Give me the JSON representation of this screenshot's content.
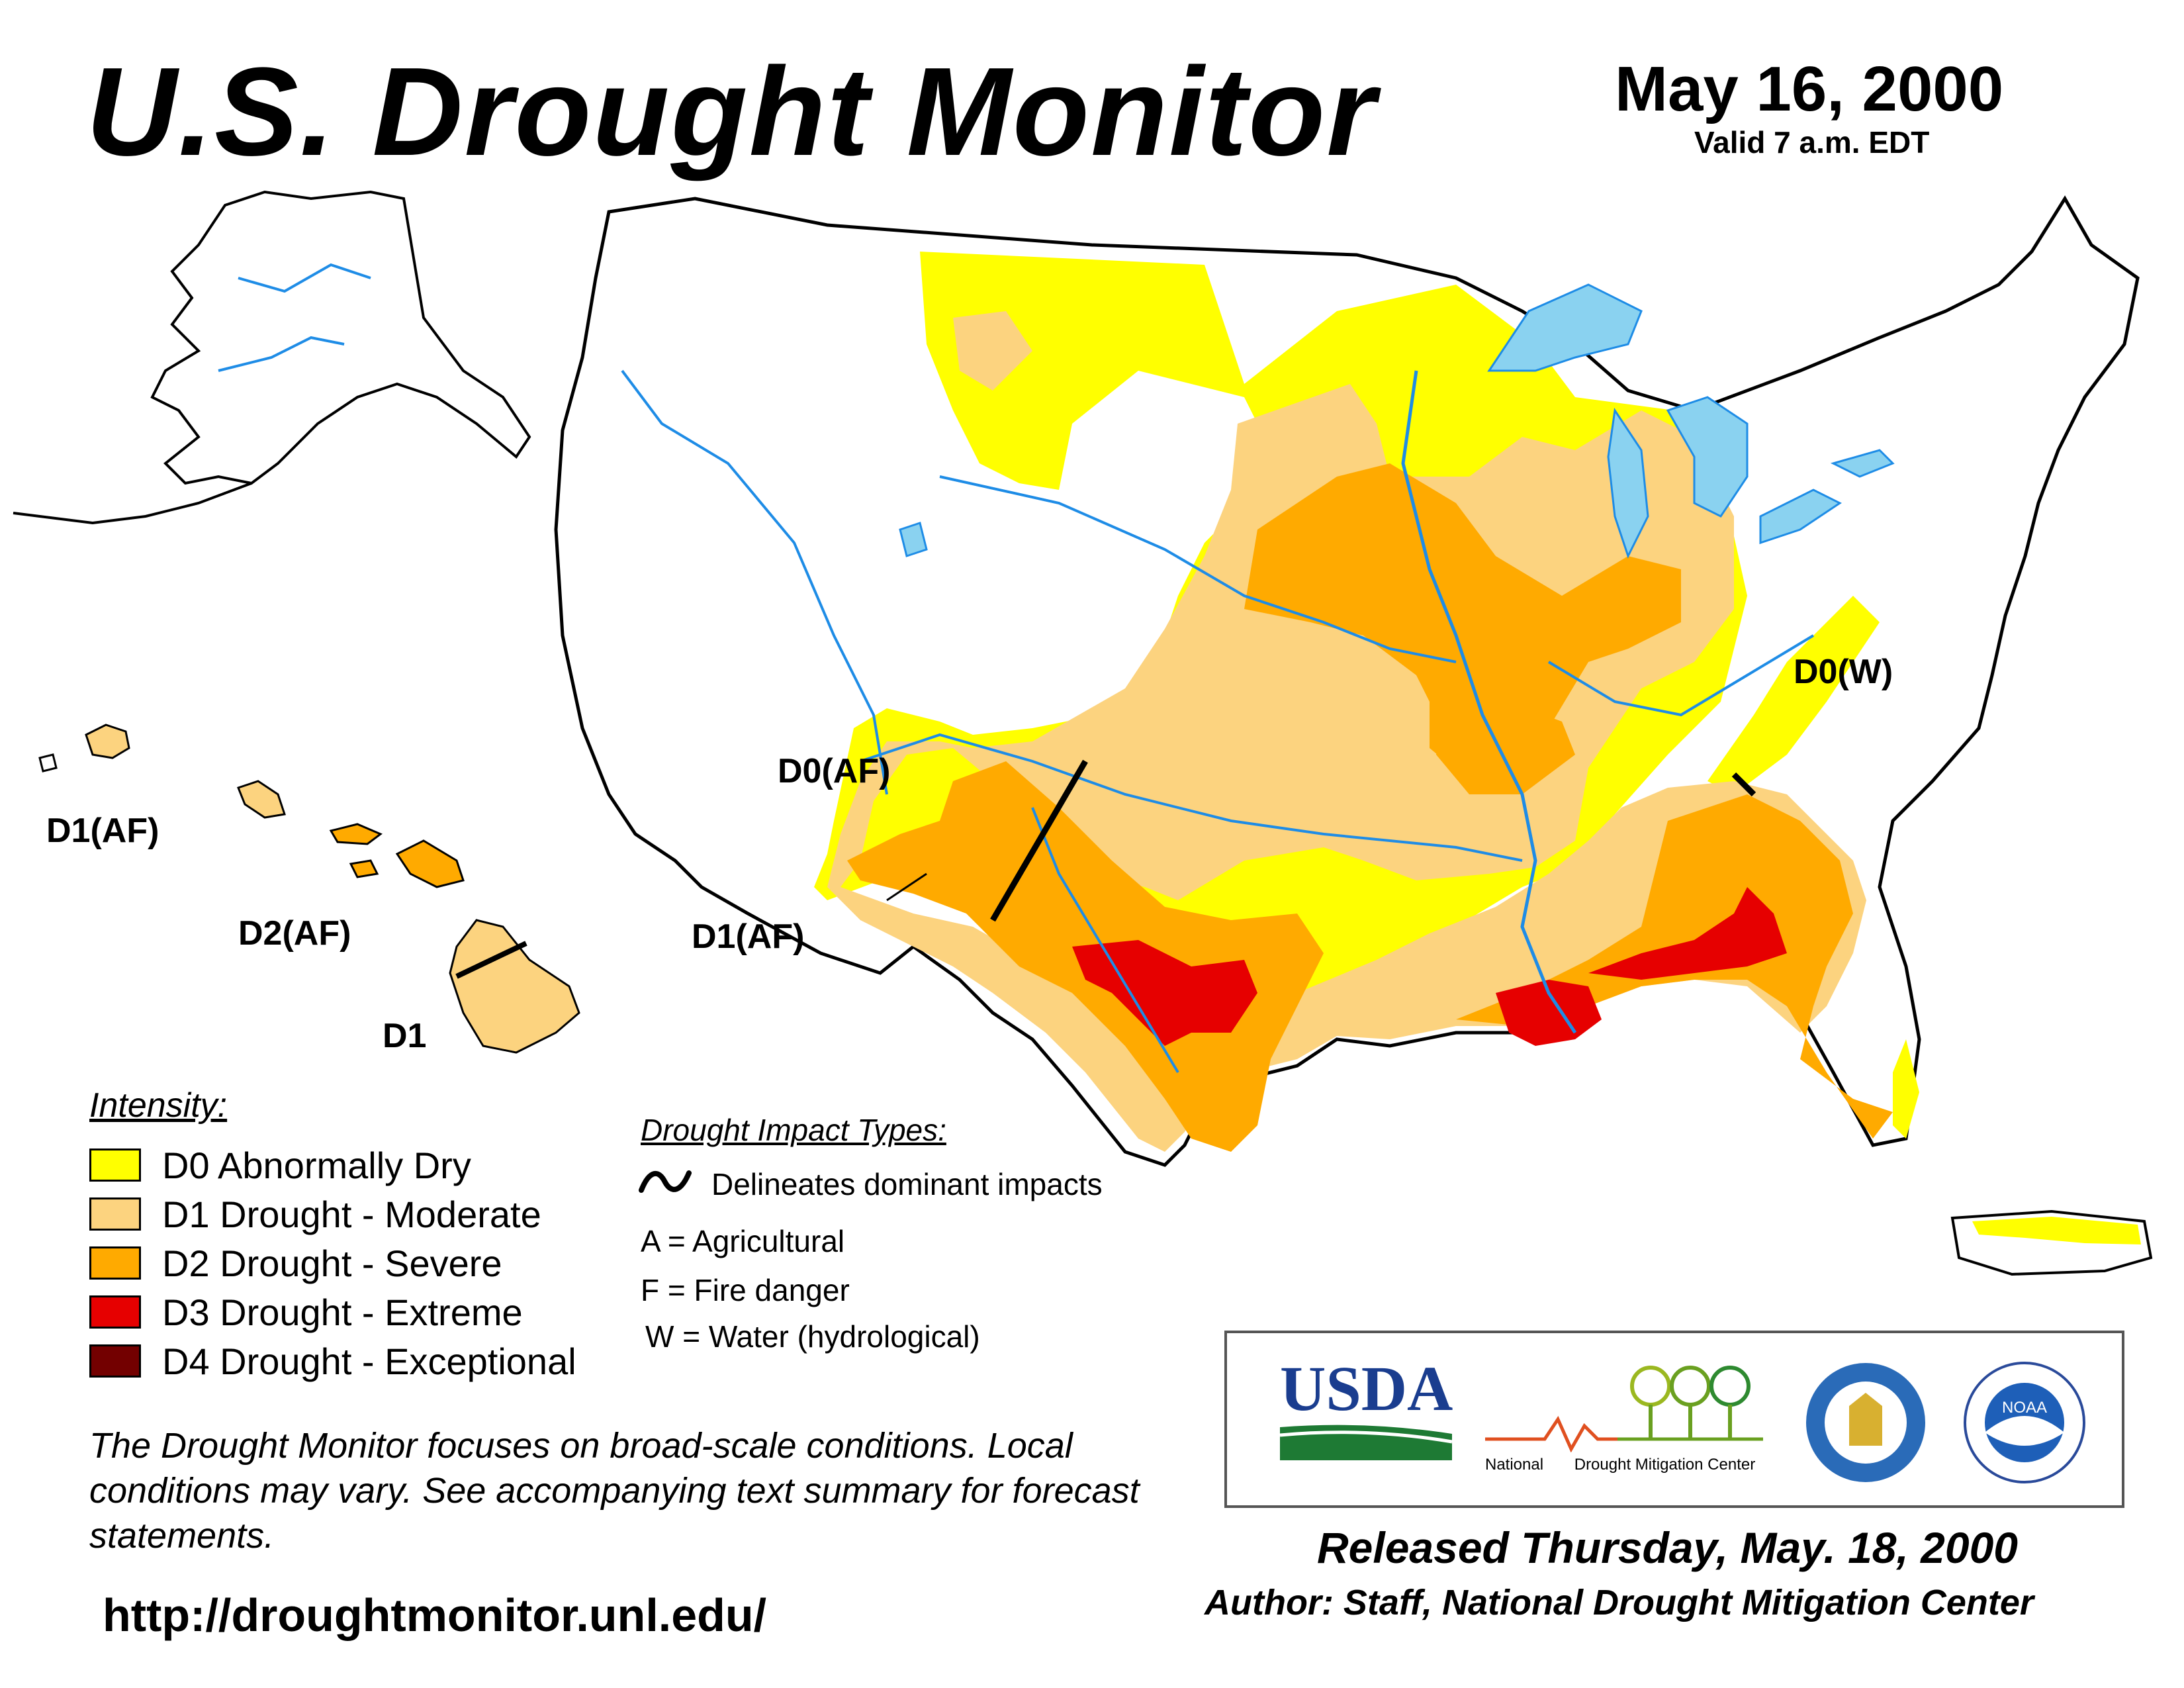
{
  "header": {
    "title": "U.S. Drought Monitor",
    "date": "May 16, 2000",
    "valid": "Valid 7 a.m. EDT"
  },
  "map": {
    "labels": {
      "hawaii_d1af": "D1(AF)",
      "hawaii_d2af": "D2(AF)",
      "hawaii_d1": "D1",
      "southwest_d0af": "D0(AF)",
      "southwest_d1af": "D1(AF)",
      "appalachia_d0w": "D0(W)"
    },
    "colors": {
      "d0": "#FFFF00",
      "d1": "#FCD37F",
      "d2": "#FFAA00",
      "d3": "#E60000",
      "d4": "#730000",
      "water": "#8AD2F0",
      "rivers": "#1E8CE6",
      "boundaries": "#999999"
    }
  },
  "legend": {
    "title": "Intensity:",
    "items": [
      {
        "label": "D0 Abnormally Dry",
        "color": "#FFFF00"
      },
      {
        "label": "D1 Drought - Moderate",
        "color": "#FCD37F"
      },
      {
        "label": "D2 Drought - Severe",
        "color": "#FFAA00"
      },
      {
        "label": "D3 Drought - Extreme",
        "color": "#E60000"
      },
      {
        "label": "D4 Drought - Exceptional",
        "color": "#730000"
      }
    ]
  },
  "impacts": {
    "title": "Drought Impact Types:",
    "delineates": "Delineates dominant impacts",
    "a": "A = Agricultural",
    "f": "F = Fire danger",
    "w": "W = Water (hydrological)"
  },
  "disclaimer": "The Drought Monitor focuses on broad-scale conditions. Local conditions may vary. See accompanying text summary for forecast statements.",
  "url": "http://droughtmonitor.unl.edu/",
  "logos": {
    "usda": "USDA",
    "ndmc_a": "National",
    "ndmc_b": "Drought Mitigation Center",
    "noaa": "NOAA"
  },
  "footer": {
    "released": "Released Thursday, May. 18, 2000",
    "author": "Author: Staff, National Drought Mitigation Center"
  }
}
